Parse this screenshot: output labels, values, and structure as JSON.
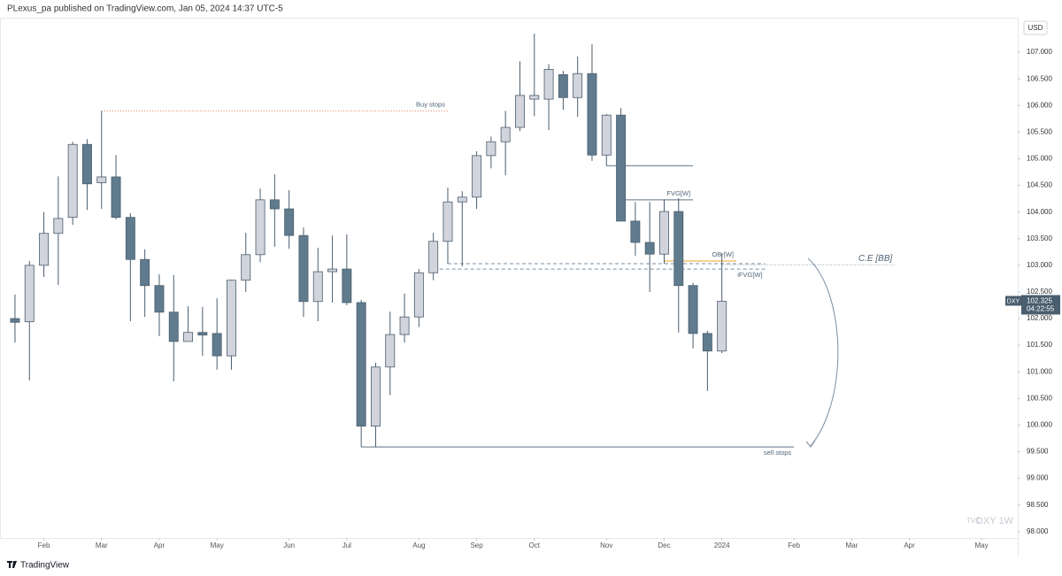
{
  "header": {
    "text": "PLexus_pa published on TradingView.com, Jan 05, 2024 14:37 UTC-5"
  },
  "footer": {
    "brand": "TradingView"
  },
  "chart_data": {
    "type": "candlestick",
    "currency": "USD",
    "x": [
      0,
      1,
      2,
      3,
      4,
      5,
      6,
      7,
      8,
      9,
      10,
      11,
      12,
      13,
      14,
      15,
      16,
      17,
      18,
      19,
      20,
      21,
      22,
      23,
      24,
      25,
      26,
      27,
      28,
      29,
      30,
      31,
      32,
      33,
      34,
      35,
      36,
      37,
      38,
      39,
      40,
      41,
      42,
      43,
      44,
      45,
      46,
      47,
      48,
      49
    ],
    "open": [
      102.0,
      101.94,
      103.0,
      103.6,
      103.9,
      105.27,
      104.55,
      104.66,
      103.9,
      103.11,
      102.62,
      102.12,
      101.57,
      101.74,
      101.72,
      101.3,
      102.72,
      103.2,
      104.23,
      104.06,
      103.56,
      102.32,
      102.88,
      102.93,
      102.3,
      99.98,
      101.09,
      101.7,
      102.03,
      102.86,
      103.45,
      104.19,
      104.28,
      105.06,
      105.32,
      105.59,
      106.12,
      106.12,
      106.58,
      106.15,
      106.6,
      105.07,
      105.82,
      103.83,
      103.43,
      103.21,
      104.01,
      102.62,
      101.72,
      101.39
    ],
    "high": [
      102.45,
      103.08,
      104.0,
      104.67,
      105.32,
      105.37,
      105.9,
      105.07,
      103.98,
      103.3,
      102.83,
      102.82,
      102.23,
      102.22,
      102.38,
      102.73,
      103.61,
      104.44,
      104.71,
      104.41,
      103.71,
      103.33,
      103.56,
      103.58,
      102.35,
      101.17,
      102.13,
      102.47,
      102.93,
      103.61,
      104.46,
      104.39,
      105.14,
      105.42,
      105.9,
      106.83,
      107.35,
      106.78,
      106.65,
      106.92,
      107.15,
      105.84,
      105.95,
      104.19,
      104.19,
      104.24,
      104.26,
      102.67,
      101.77,
      103.23
    ],
    "low": [
      101.55,
      100.84,
      102.78,
      102.63,
      103.76,
      104.04,
      104.06,
      103.86,
      101.95,
      102.03,
      101.67,
      100.82,
      101.57,
      101.3,
      101.04,
      101.04,
      102.5,
      103.06,
      103.35,
      103.31,
      102.03,
      101.95,
      102.3,
      102.25,
      99.59,
      99.59,
      100.56,
      101.55,
      101.84,
      102.72,
      103.03,
      102.98,
      104.06,
      104.82,
      104.69,
      105.52,
      105.8,
      105.54,
      105.92,
      105.79,
      104.96,
      104.87,
      103.83,
      103.18,
      102.5,
      103.03,
      101.74,
      101.44,
      100.64,
      101.35
    ],
    "close": [
      101.93,
      103.0,
      103.6,
      103.88,
      105.27,
      104.53,
      104.66,
      103.9,
      103.11,
      102.62,
      102.12,
      101.57,
      101.74,
      101.69,
      101.3,
      102.72,
      103.2,
      104.23,
      104.06,
      103.56,
      102.32,
      102.88,
      102.93,
      102.3,
      99.98,
      101.09,
      101.7,
      102.03,
      102.86,
      103.45,
      104.19,
      104.28,
      105.06,
      105.32,
      105.59,
      106.19,
      106.19,
      106.68,
      106.15,
      106.6,
      105.07,
      105.82,
      103.83,
      103.43,
      103.21,
      104.01,
      102.62,
      101.72,
      101.39,
      102.325
    ],
    "up_color": "#d1d4dc",
    "down_color": "#607b8e",
    "outline_color": "#4a5e6e",
    "xlim": [
      -1.04,
      69.51
    ],
    "xticks": [
      {
        "value": 2,
        "label": "Feb"
      },
      {
        "value": 6,
        "label": "Mar"
      },
      {
        "value": 10,
        "label": "Apr"
      },
      {
        "value": 14,
        "label": "May"
      },
      {
        "value": 19,
        "label": "Jun"
      },
      {
        "value": 23,
        "label": "Jul"
      },
      {
        "value": 28,
        "label": "Aug"
      },
      {
        "value": 32,
        "label": "Sep"
      },
      {
        "value": 36,
        "label": "Oct"
      },
      {
        "value": 41,
        "label": "Nov"
      },
      {
        "value": 45,
        "label": "Dec"
      },
      {
        "value": 49,
        "label": "2024"
      },
      {
        "value": 54,
        "label": "Feb"
      },
      {
        "value": 58,
        "label": "Mar"
      },
      {
        "value": 62,
        "label": "Apr"
      },
      {
        "value": 67,
        "label": "May"
      }
    ],
    "ylim": [
      97.88,
      107.65
    ],
    "yticks": [
      {
        "value": 98,
        "label": "98.000"
      },
      {
        "value": 98.5,
        "label": "98.500"
      },
      {
        "value": 99,
        "label": "99.000"
      },
      {
        "value": 99.5,
        "label": "99.500"
      },
      {
        "value": 100,
        "label": "100.000"
      },
      {
        "value": 100.5,
        "label": "100.500"
      },
      {
        "value": 101,
        "label": "101.000"
      },
      {
        "value": 101.5,
        "label": "101.500"
      },
      {
        "value": 102,
        "label": "102.000"
      },
      {
        "value": 102.5,
        "label": "102.500"
      },
      {
        "value": 103,
        "label": "103.000"
      },
      {
        "value": 103.5,
        "label": "103.500"
      },
      {
        "value": 104,
        "label": "104.000"
      },
      {
        "value": 104.5,
        "label": "104.500"
      },
      {
        "value": 105,
        "label": "105.000"
      },
      {
        "value": 105.5,
        "label": "105.500"
      },
      {
        "value": 106,
        "label": "106.000"
      },
      {
        "value": 106.5,
        "label": "106.500"
      },
      {
        "value": 107,
        "label": "107.000"
      }
    ],
    "grid": false,
    "levels": [
      {
        "label": "Buy stops",
        "value": 105.9,
        "x": [
          6,
          30
        ],
        "color": "#e57351",
        "style": "dotted",
        "label_position": "above"
      },
      {
        "value": 104.87,
        "x": [
          41,
          47
        ],
        "color": "#5d7184",
        "style": "solid"
      },
      {
        "label": "FVG[W]",
        "value": 104.23,
        "x": [
          42,
          47
        ],
        "color": "#5d7184",
        "style": "solid",
        "label_position": "above"
      },
      {
        "label": "OB-[W]",
        "value": 103.08,
        "x": [
          45,
          50
        ],
        "color": "#f0a020",
        "style": "solid",
        "label_position": "above"
      },
      {
        "value": 103.03,
        "x": [
          30,
          52
        ],
        "color": "#7a8fa6",
        "style": "dashed"
      },
      {
        "label": "iFVG[W]",
        "value": 102.93,
        "x": [
          29,
          52
        ],
        "color": "#7a8fa6",
        "style": "dashed",
        "label_position": "below"
      },
      {
        "label": "C.E [BB]",
        "value": 103.01,
        "x": [
          49,
          61
        ],
        "color": "#8a9bb0",
        "style": "dotted",
        "label_position": "above"
      },
      {
        "label": "sell stops",
        "value": 99.59,
        "x": [
          24,
          54
        ],
        "color": "#5d7184",
        "style": "solid",
        "label_position": "below"
      }
    ],
    "last_price": {
      "symbol": "DXY",
      "value": 102.325,
      "countdown": "04:22:55"
    },
    "watermark": {
      "source": "TVC",
      "symbol": "DXY 1W"
    }
  }
}
